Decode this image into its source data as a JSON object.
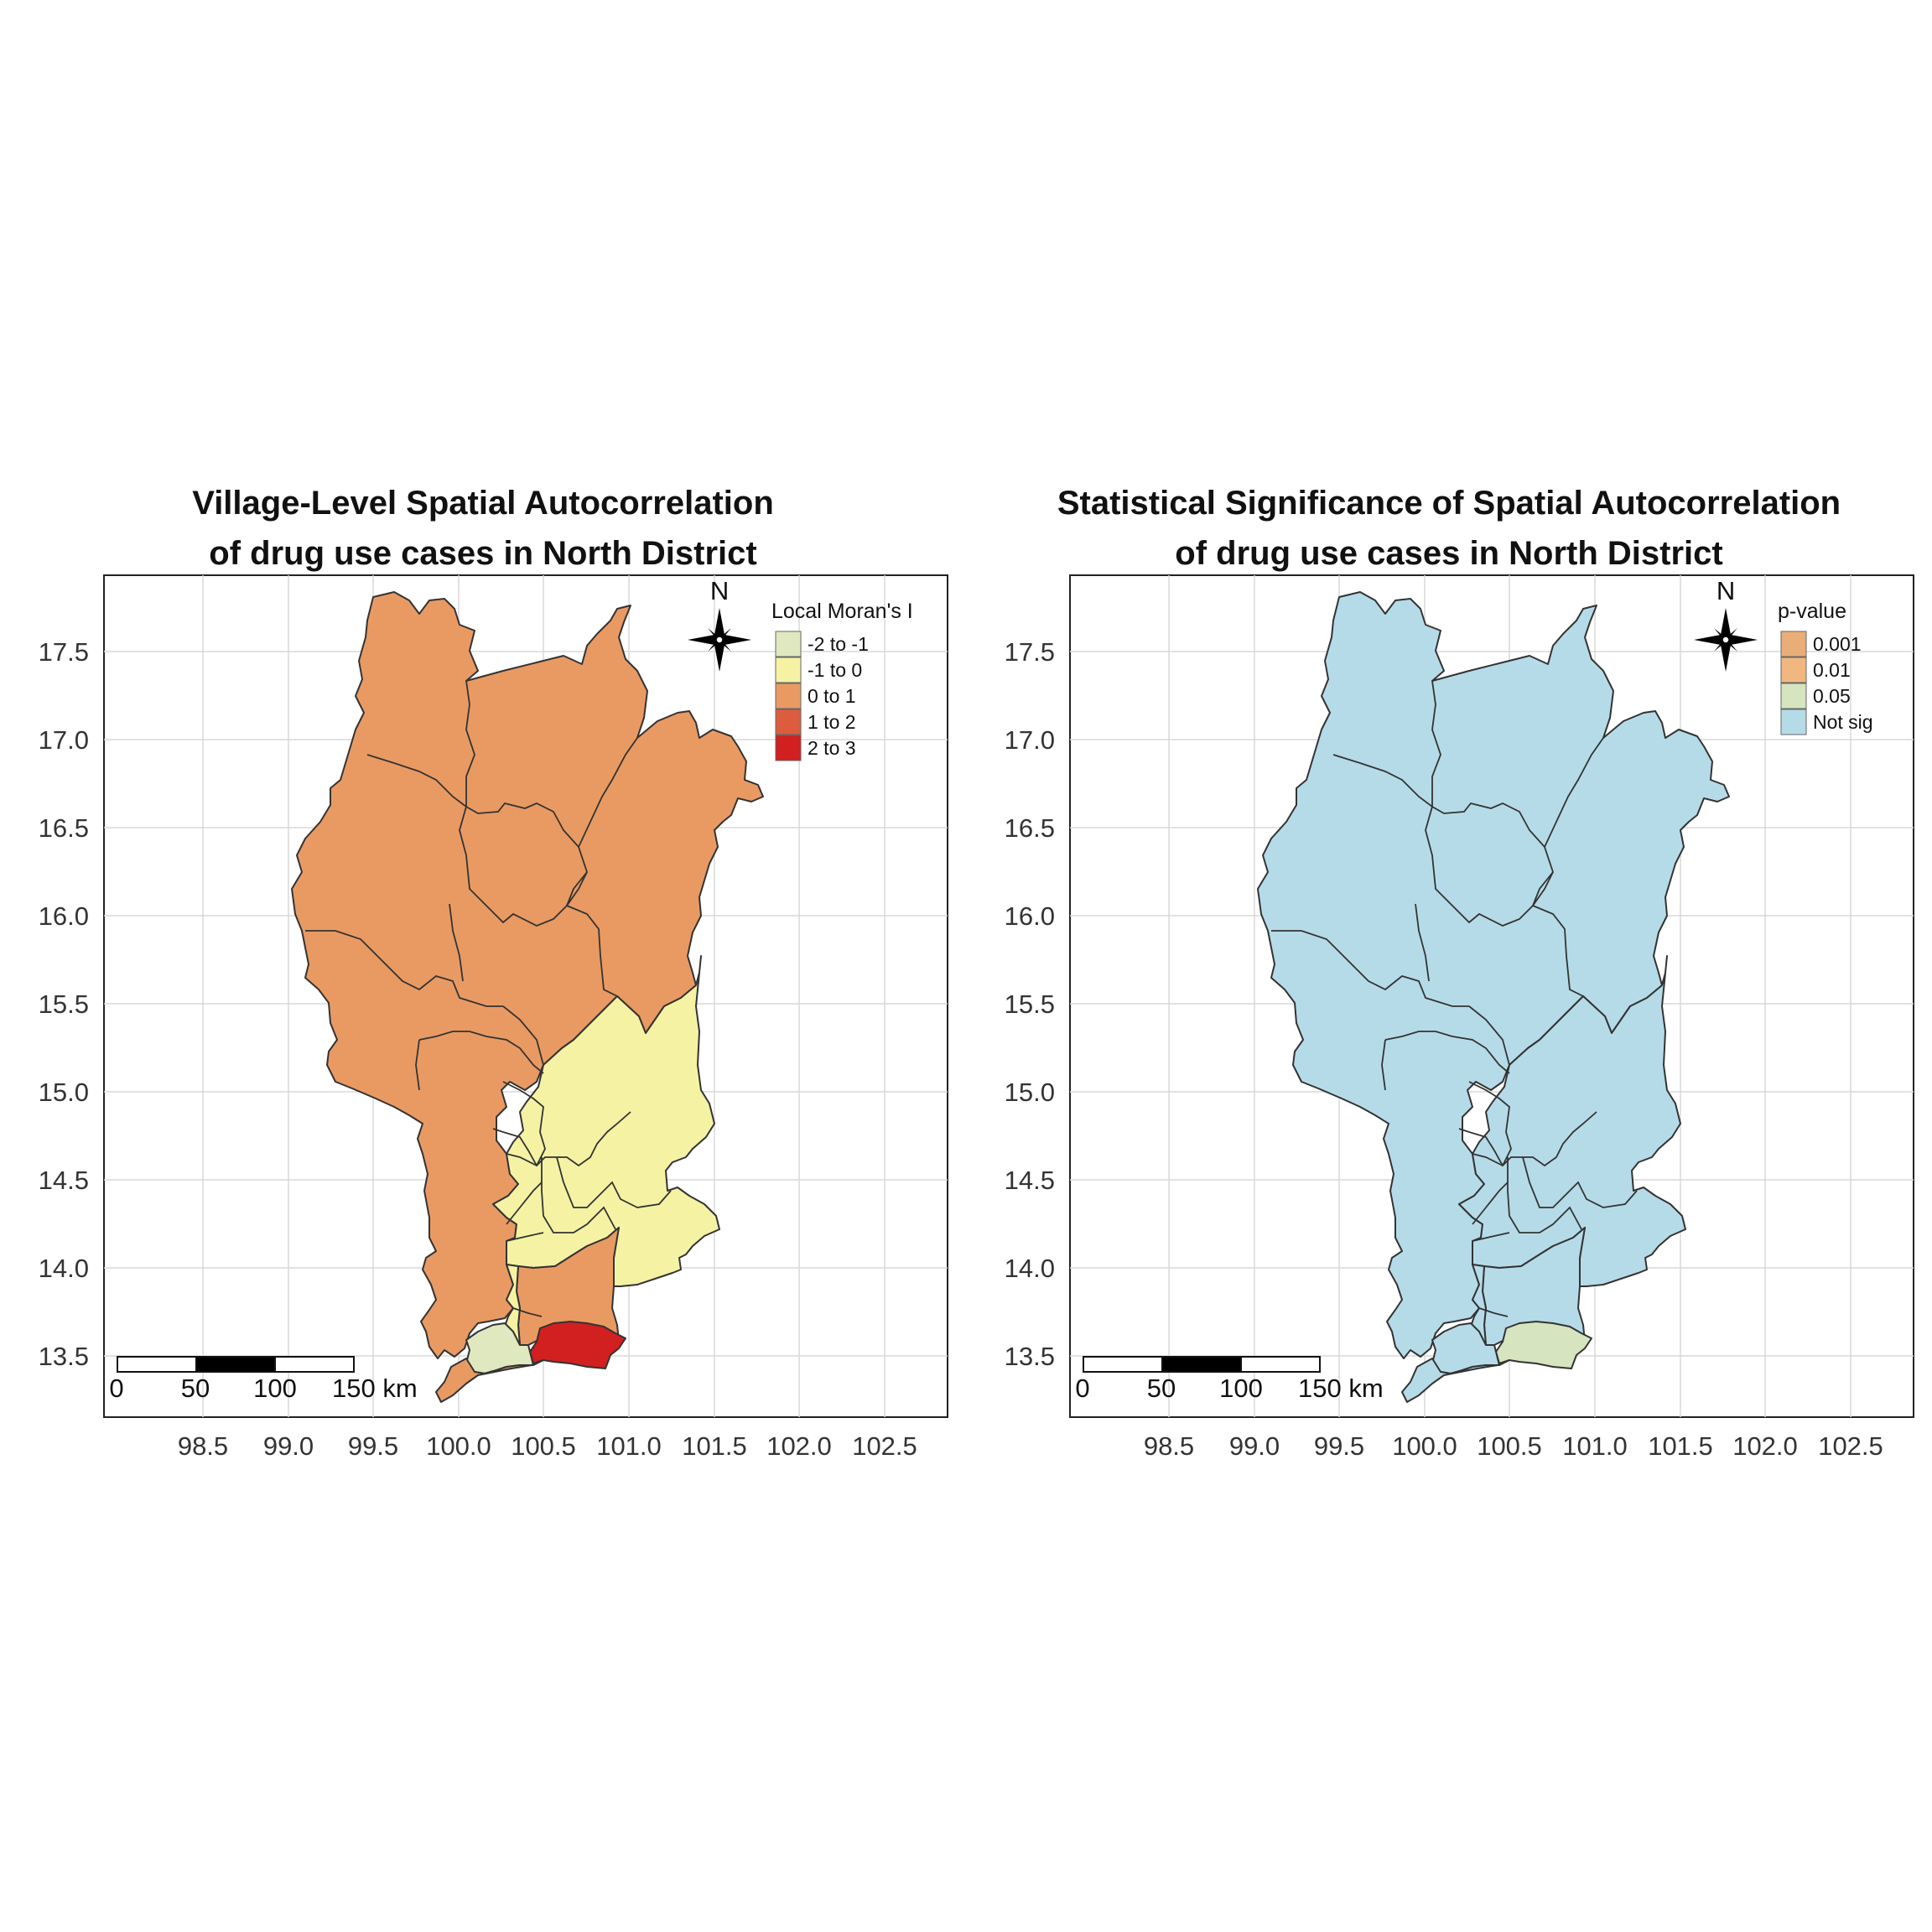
{
  "maps": [
    {
      "title_line1": "Village-Level Spatial Autocorrelation",
      "title_line2": "of drug use cases in North District",
      "legend_title": "Local Moran's I",
      "legend": [
        {
          "label": "-2 to -1",
          "color": "#dfe8bf"
        },
        {
          "label": "-1 to 0",
          "color": "#f5f2a4"
        },
        {
          "label": "0 to 1",
          "color": "#e99a63"
        },
        {
          "label": "1 to 2",
          "color": "#dd5c3e"
        },
        {
          "label": "2 to 3",
          "color": "#d21f1f"
        }
      ],
      "region_fills": {
        "north_main": "#e99a63",
        "east_yellow": "#f5f2a4",
        "southwest_green": "#dfe8bf",
        "south_red": "#d21f1f",
        "south_orange": "#e99a63"
      }
    },
    {
      "title_line1": "Statistical Significance of Spatial Autocorrelation",
      "title_line2": "of drug use cases in North District",
      "legend_title": "p-value",
      "legend": [
        {
          "label": "0.001",
          "color": "#e9ad78"
        },
        {
          "label": "0.01",
          "color": "#f0b880"
        },
        {
          "label": "0.05",
          "color": "#d6e4bf"
        },
        {
          "label": "Not sig",
          "color": "#b6dbe8"
        }
      ],
      "region_fills": {
        "north_main": "#b6dbe8",
        "east_yellow": "#b6dbe8",
        "southwest_green": "#b6dbe8",
        "south_red": "#d6e4bf",
        "south_orange": "#b6dbe8"
      }
    }
  ],
  "axes": {
    "y_ticks": [
      "13.5",
      "14.0",
      "14.5",
      "15.0",
      "15.5",
      "16.0",
      "16.5",
      "17.0",
      "17.5"
    ],
    "x_ticks": [
      "98.5",
      "99.0",
      "99.5",
      "100.0",
      "100.5",
      "101.0",
      "101.5",
      "102.0",
      "102.5"
    ]
  },
  "scalebar": {
    "labels": [
      "0",
      "50",
      "100",
      "150 km"
    ]
  },
  "north_arrow": {
    "label": "N"
  }
}
